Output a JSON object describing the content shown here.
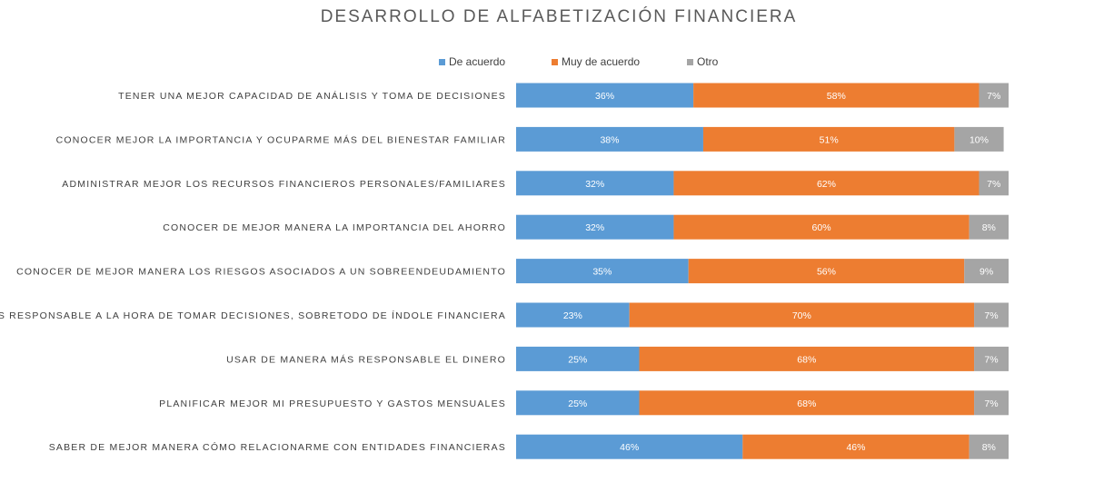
{
  "chart_data": {
    "type": "bar",
    "orientation": "horizontal",
    "stacked": true,
    "title": "DESARROLLO DE ALFABETIZACIÓN FINANCIERA",
    "legend_position": "top",
    "grid": false,
    "xlim": [
      0,
      100
    ],
    "categories": [
      "TENER UNA MEJOR CAPACIDAD DE ANÁLISIS Y TOMA DE DECISIONES",
      "CONOCER MEJOR LA IMPORTANCIA Y OCUPARME MÁS DEL BIENESTAR FAMILIAR",
      "ADMINISTRAR MEJOR LOS RECURSOS FINANCIEROS PERSONALES/FAMILIARES",
      "CONOCER DE MEJOR MANERA LA IMPORTANCIA DEL AHORRO",
      "CONOCER DE MEJOR MANERA LOS RIESGOS ASOCIADOS A UN SOBREENDEUDAMIENTO",
      "SER MÁS RESPONSABLE A LA HORA DE TOMAR DECISIONES, SOBRETODO DE ÍNDOLE FINANCIERA",
      "USAR DE MANERA MÁS RESPONSABLE EL DINERO",
      "PLANIFICAR MEJOR MI PRESUPUESTO Y GASTOS MENSUALES",
      "SABER DE MEJOR MANERA CÓMO RELACIONARME CON ENTIDADES FINANCIERAS"
    ],
    "series": [
      {
        "name": "De acuerdo",
        "color": "#5B9BD5",
        "values": [
          36,
          38,
          32,
          32,
          35,
          23,
          25,
          25,
          46
        ]
      },
      {
        "name": "Muy de acuerdo",
        "color": "#ED7D31",
        "values": [
          58,
          51,
          62,
          60,
          56,
          70,
          68,
          68,
          46
        ]
      },
      {
        "name": "Otro",
        "color": "#A5A5A5",
        "values": [
          7,
          10,
          7,
          8,
          9,
          7,
          7,
          7,
          8
        ]
      }
    ],
    "value_suffix": "%"
  }
}
